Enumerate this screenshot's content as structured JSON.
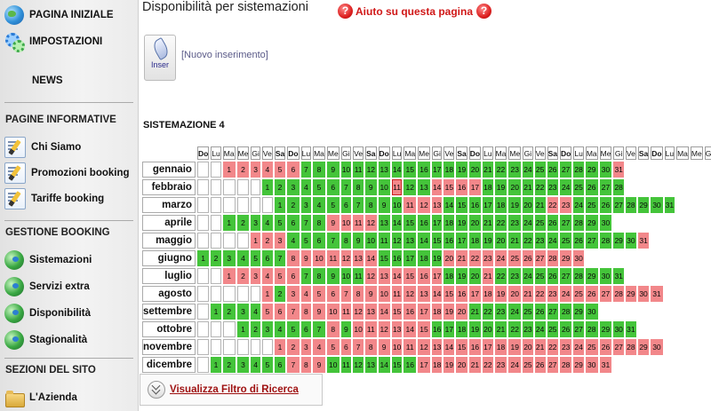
{
  "sidebar": {
    "home": {
      "label": "PAGINA INIZIALE",
      "icon": "globe-icon"
    },
    "settings": {
      "label": "IMPOSTAZIONI",
      "icon": "gears-icon"
    },
    "news": {
      "label": "NEWS"
    },
    "section_info": "PAGINE INFORMATIVE",
    "info_items": [
      {
        "label": "Chi Siamo",
        "icon": "edit-page-icon"
      },
      {
        "label": "Promozioni booking",
        "icon": "edit-page-icon"
      },
      {
        "label": "Tariffe booking",
        "icon": "edit-page-icon"
      }
    ],
    "section_booking": "GESTIONE BOOKING",
    "booking_items": [
      {
        "label": "Sistemazioni",
        "icon": "globe-green-icon"
      },
      {
        "label": "Servizi extra",
        "icon": "globe-green-icon"
      },
      {
        "label": "Disponibilità",
        "icon": "globe-green-icon"
      },
      {
        "label": "Stagionalità",
        "icon": "globe-green-icon"
      }
    ],
    "section_site": "SEZIONI DEL SITO",
    "site_items": [
      {
        "label": "L'Azienda",
        "icon": "folder-icon"
      }
    ]
  },
  "main": {
    "title": "Disponibilità per sistemazioni",
    "help": "Aiuto su questa pagina",
    "new_button_caption": "Inser",
    "new_link": "[Nuovo inserimento]",
    "accommodation": "SISTEMAZIONE 4",
    "filter_link": "Visualizza Filtro di Ricerca"
  },
  "calendar": {
    "weekdays": [
      "Do",
      "Lu",
      "Ma",
      "Me",
      "Gi",
      "Ve",
      "Sa",
      "Do",
      "Lu",
      "Ma",
      "Me",
      "Gi",
      "Ve",
      "Sa",
      "Do",
      "Lu",
      "Ma",
      "Me",
      "Gi",
      "Ve",
      "Sa",
      "Do",
      "Lu",
      "Ma",
      "Me",
      "Gi",
      "Ve",
      "Sa",
      "Do",
      "Lu",
      "Ma",
      "Me",
      "Gi",
      "Ve",
      "Sa",
      "Do",
      "Lu",
      "Ma",
      "Me",
      "Gi",
      "Ve",
      "Sa"
    ],
    "colors": {
      "available": "#44c43a",
      "occupied": "#f2878a"
    },
    "months": [
      {
        "name": "gennaio",
        "offset": 2,
        "days": 31,
        "occupied": [
          1,
          2,
          3,
          4,
          5,
          6,
          31
        ]
      },
      {
        "name": "febbraio",
        "offset": 5,
        "days": 28,
        "occupied": [
          11,
          14,
          15,
          16,
          17
        ],
        "highlight": [
          11
        ]
      },
      {
        "name": "marzo",
        "offset": 6,
        "days": 31,
        "occupied": [
          11,
          12,
          13,
          22,
          23
        ]
      },
      {
        "name": "aprile",
        "offset": 2,
        "days": 30,
        "occupied": [
          9,
          10,
          11,
          12
        ]
      },
      {
        "name": "maggio",
        "offset": 4,
        "days": 31,
        "occupied": [
          1,
          2,
          3,
          31
        ]
      },
      {
        "name": "giugno",
        "offset": 0,
        "days": 30,
        "occupied": [
          8,
          9,
          10,
          11,
          12,
          13,
          14,
          20,
          21,
          22,
          23,
          24,
          25,
          26,
          27,
          28,
          29,
          30
        ]
      },
      {
        "name": "luglio",
        "offset": 2,
        "days": 31,
        "occupied": [
          1,
          2,
          3,
          4,
          5,
          6,
          12,
          13,
          14,
          15,
          16,
          17,
          21
        ]
      },
      {
        "name": "agosto",
        "offset": 5,
        "days": 31,
        "occupied": [
          1,
          3,
          4,
          5,
          6,
          7,
          8,
          9,
          10,
          11,
          12,
          13,
          14,
          15,
          16,
          17,
          18,
          19,
          20,
          21,
          22,
          23,
          24,
          25,
          26,
          27,
          28,
          29,
          30,
          31
        ]
      },
      {
        "name": "settembre",
        "offset": 1,
        "days": 30,
        "occupied": [
          5,
          6,
          7,
          8,
          9,
          10,
          11,
          12,
          13,
          14,
          15,
          16,
          17,
          18,
          19,
          20
        ]
      },
      {
        "name": "ottobre",
        "offset": 3,
        "days": 31,
        "occupied": [
          8,
          10,
          11,
          12,
          13,
          14,
          15
        ]
      },
      {
        "name": "novembre",
        "offset": 6,
        "days": 30,
        "occupied": [
          1,
          2,
          3,
          4,
          5,
          6,
          7,
          8,
          9,
          10,
          11,
          12,
          13,
          14,
          15,
          16,
          17,
          18,
          19,
          20,
          21,
          22,
          23,
          24,
          25,
          26,
          27,
          28,
          29,
          30
        ]
      },
      {
        "name": "dicembre",
        "offset": 1,
        "days": 31,
        "occupied": [
          7,
          8,
          9,
          17,
          18,
          19,
          20,
          21,
          22,
          23,
          24,
          25,
          26,
          27,
          28,
          29,
          30,
          31
        ]
      }
    ]
  }
}
